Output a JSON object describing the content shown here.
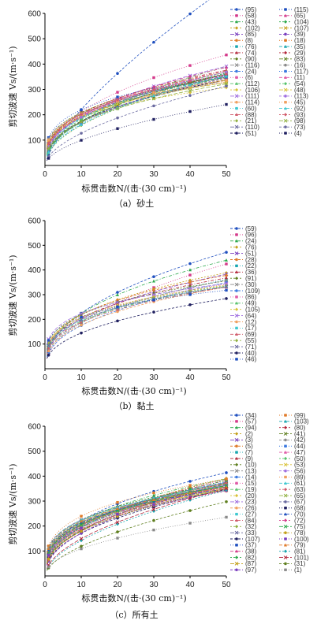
{
  "chart_data": [
    {
      "type": "scatter",
      "panel": "sand",
      "ylabel": "剪切波速 Vs/(m·s⁻¹)",
      "xlabel": "标贯击数N/(击·(30 cm)⁻¹)",
      "caption": "（a）砂土",
      "xlim": [
        0,
        50
      ],
      "ylim": [
        0,
        600
      ],
      "xticks": [
        "0",
        "10",
        "20",
        "30",
        "40",
        "50"
      ],
      "yticks": [
        "100",
        "200",
        "300",
        "400",
        "500",
        "600"
      ],
      "legend_position": "right",
      "legend": [
        "(95)",
        "(58)",
        "(43)",
        "(102)",
        "(85)",
        "(8)",
        "(76)",
        "(74)",
        "(90)",
        "(116)",
        "(24)",
        "(6)",
        "(112)",
        "(106)",
        "(111)",
        "(114)",
        "(60)",
        "(88)",
        "(21)",
        "(110)",
        "(51)",
        "(115)",
        "(65)",
        "(104)",
        "(107)",
        "(39)",
        "(18)",
        "(35)",
        "(29)",
        "(83)",
        "(16)",
        "(117)",
        "(11)",
        "(54)",
        "(48)",
        "(113)",
        "(45)",
        "(92)",
        "(93)",
        "(98)",
        "(73)",
        "(4)"
      ],
      "x": [
        1,
        10,
        20,
        30,
        40,
        50
      ],
      "curves": [
        {
          "a": 42,
          "b": 0.72
        },
        {
          "a": 75,
          "b": 0.45
        },
        {
          "a": 60,
          "b": 0.45
        },
        {
          "a": 95,
          "b": 0.33
        },
        {
          "a": 80,
          "b": 0.38
        },
        {
          "a": 90,
          "b": 0.36
        },
        {
          "a": 70,
          "b": 0.42
        },
        {
          "a": 85,
          "b": 0.38
        },
        {
          "a": 100,
          "b": 0.32
        },
        {
          "a": 65,
          "b": 0.42
        },
        {
          "a": 75,
          "b": 0.4
        },
        {
          "a": 88,
          "b": 0.36
        },
        {
          "a": 55,
          "b": 0.5
        },
        {
          "a": 95,
          "b": 0.3
        },
        {
          "a": 70,
          "b": 0.44
        },
        {
          "a": 82,
          "b": 0.36
        },
        {
          "a": 60,
          "b": 0.46
        },
        {
          "a": 78,
          "b": 0.4
        },
        {
          "a": 50,
          "b": 0.5
        },
        {
          "a": 92,
          "b": 0.34
        },
        {
          "a": 68,
          "b": 0.41
        },
        {
          "a": 110,
          "b": 0.3
        },
        {
          "a": 72,
          "b": 0.43
        },
        {
          "a": 58,
          "b": 0.47
        },
        {
          "a": 86,
          "b": 0.35
        },
        {
          "a": 64,
          "b": 0.43
        },
        {
          "a": 98,
          "b": 0.31
        },
        {
          "a": 76,
          "b": 0.39
        },
        {
          "a": 84,
          "b": 0.37
        },
        {
          "a": 62,
          "b": 0.45
        },
        {
          "a": 105,
          "b": 0.29
        },
        {
          "a": 54,
          "b": 0.48
        },
        {
          "a": 80,
          "b": 0.39
        },
        {
          "a": 66,
          "b": 0.44
        },
        {
          "a": 90,
          "b": 0.33
        },
        {
          "a": 74,
          "b": 0.41
        },
        {
          "a": 100,
          "b": 0.31
        },
        {
          "a": 52,
          "b": 0.49
        },
        {
          "a": 88,
          "b": 0.36
        },
        {
          "a": 70,
          "b": 0.39
        },
        {
          "a": 35,
          "b": 0.56
        },
        {
          "a": 28,
          "b": 0.55
        }
      ]
    },
    {
      "type": "scatter",
      "panel": "clay",
      "ylabel": "剪切波速 Vs/(m·s⁻¹)",
      "xlabel": "标贯击数N/(击·(30 cm)⁻¹)",
      "caption": "（b）黏土",
      "xlim": [
        0,
        50
      ],
      "ylim": [
        0,
        600
      ],
      "xticks": [
        "0",
        "10",
        "20",
        "30",
        "40",
        "50"
      ],
      "yticks": [
        "100",
        "200",
        "300",
        "400",
        "500",
        "600"
      ],
      "legend_position": "right",
      "legend": [
        "(59)",
        "(96)",
        "(24)",
        "(76)",
        "(51)",
        "(28)",
        "(22)",
        "(36)",
        "(91)",
        "(30)",
        "(109)",
        "(86)",
        "(49)",
        "(105)",
        "(64)",
        "(12)",
        "(17)",
        "(69)",
        "(55)",
        "(71)",
        "(40)",
        "(46)"
      ],
      "x": [
        1,
        10,
        20,
        30,
        40,
        50
      ],
      "curves": [
        {
          "a": 78,
          "b": 0.46
        },
        {
          "a": 60,
          "b": 0.5
        },
        {
          "a": 85,
          "b": 0.42
        },
        {
          "a": 95,
          "b": 0.36
        },
        {
          "a": 80,
          "b": 0.4
        },
        {
          "a": 100,
          "b": 0.34
        },
        {
          "a": 70,
          "b": 0.42
        },
        {
          "a": 90,
          "b": 0.36
        },
        {
          "a": 110,
          "b": 0.3
        },
        {
          "a": 75,
          "b": 0.4
        },
        {
          "a": 65,
          "b": 0.43
        },
        {
          "a": 98,
          "b": 0.32
        },
        {
          "a": 88,
          "b": 0.34
        },
        {
          "a": 105,
          "b": 0.3
        },
        {
          "a": 120,
          "b": 0.27
        },
        {
          "a": 72,
          "b": 0.39
        },
        {
          "a": 92,
          "b": 0.33
        },
        {
          "a": 84,
          "b": 0.35
        },
        {
          "a": 100,
          "b": 0.31
        },
        {
          "a": 95,
          "b": 0.32
        },
        {
          "a": 55,
          "b": 0.42
        },
        {
          "a": 115,
          "b": 0.26
        }
      ]
    },
    {
      "type": "scatter",
      "panel": "all",
      "ylabel": "剪切波速 Vs/(m·s⁻¹)",
      "xlabel": "标贯击数N/(击·(30 cm)⁻¹)",
      "caption": "（c）所有土",
      "xlim": [
        0,
        50
      ],
      "ylim": [
        0,
        600
      ],
      "xticks": [
        "0",
        "10",
        "20",
        "30",
        "40",
        "50"
      ],
      "yticks": [
        "100",
        "200",
        "300",
        "400",
        "500",
        "600"
      ],
      "legend_position": "right",
      "legend": [
        "(34)",
        "(57)",
        "(94)",
        "(2)",
        "(3)",
        "(5)",
        "(7)",
        "(9)",
        "(10)",
        "(13)",
        "(14)",
        "(15)",
        "(19)",
        "(20)",
        "(23)",
        "(26)",
        "(27)",
        "(84)",
        "(32)",
        "(33)",
        "(107)",
        "(37)",
        "(38)",
        "(82)",
        "(87)",
        "(97)",
        "(99)",
        "(103)",
        "(80)",
        "(41)",
        "(42)",
        "(44)",
        "(47)",
        "(50)",
        "(53)",
        "(56)",
        "(89)",
        "(61)",
        "(63)",
        "(65)",
        "(67)",
        "(68)",
        "(70)",
        "(72)",
        "(75)",
        "(78)",
        "(100)",
        "(79)",
        "(81)",
        "(101)",
        "(31)",
        "(1)"
      ],
      "x": [
        1,
        10,
        20,
        30,
        40,
        50
      ],
      "curves": [
        {
          "a": 90,
          "b": 0.39
        },
        {
          "a": 75,
          "b": 0.42
        },
        {
          "a": 95,
          "b": 0.36
        },
        {
          "a": 70,
          "b": 0.44
        },
        {
          "a": 85,
          "b": 0.38
        },
        {
          "a": 100,
          "b": 0.33
        },
        {
          "a": 65,
          "b": 0.45
        },
        {
          "a": 80,
          "b": 0.4
        },
        {
          "a": 110,
          "b": 0.31
        },
        {
          "a": 72,
          "b": 0.41
        },
        {
          "a": 88,
          "b": 0.37
        },
        {
          "a": 60,
          "b": 0.46
        },
        {
          "a": 98,
          "b": 0.34
        },
        {
          "a": 76,
          "b": 0.4
        },
        {
          "a": 92,
          "b": 0.35
        },
        {
          "a": 68,
          "b": 0.43
        },
        {
          "a": 105,
          "b": 0.32
        },
        {
          "a": 84,
          "b": 0.38
        },
        {
          "a": 78,
          "b": 0.4
        },
        {
          "a": 115,
          "b": 0.29
        },
        {
          "a": 62,
          "b": 0.44
        },
        {
          "a": 96,
          "b": 0.33
        },
        {
          "a": 86,
          "b": 0.36
        },
        {
          "a": 74,
          "b": 0.42
        },
        {
          "a": 102,
          "b": 0.31
        },
        {
          "a": 58,
          "b": 0.47
        },
        {
          "a": 120,
          "b": 0.3
        },
        {
          "a": 82,
          "b": 0.38
        },
        {
          "a": 94,
          "b": 0.34
        },
        {
          "a": 66,
          "b": 0.44
        },
        {
          "a": 108,
          "b": 0.3
        },
        {
          "a": 79,
          "b": 0.39
        },
        {
          "a": 90,
          "b": 0.35
        },
        {
          "a": 70,
          "b": 0.41
        },
        {
          "a": 100,
          "b": 0.32
        },
        {
          "a": 86,
          "b": 0.37
        },
        {
          "a": 76,
          "b": 0.39
        },
        {
          "a": 112,
          "b": 0.3
        },
        {
          "a": 64,
          "b": 0.45
        },
        {
          "a": 88,
          "b": 0.36
        },
        {
          "a": 96,
          "b": 0.34
        },
        {
          "a": 72,
          "b": 0.4
        },
        {
          "a": 104,
          "b": 0.31
        },
        {
          "a": 80,
          "b": 0.37
        },
        {
          "a": 92,
          "b": 0.35
        },
        {
          "a": 68,
          "b": 0.42
        },
        {
          "a": 84,
          "b": 0.36
        },
        {
          "a": 110,
          "b": 0.3
        },
        {
          "a": 40,
          "b": 0.55
        },
        {
          "a": 44,
          "b": 0.53
        },
        {
          "a": 32,
          "b": 0.57
        },
        {
          "a": 36,
          "b": 0.48
        }
      ]
    }
  ],
  "palette": [
    "#1f4fbf",
    "#d43a8b",
    "#2aa84a",
    "#c4a01a",
    "#7a3fbf",
    "#e07b2a",
    "#1aa7b0",
    "#b3263a",
    "#5f7f1f",
    "#8a8a8a",
    "#3d7ae0",
    "#e05aa7",
    "#56c26b",
    "#d9c23a",
    "#a070e0",
    "#f0a060",
    "#40c8d0",
    "#d05a6a",
    "#90b040",
    "#6a6aa0",
    "#202060"
  ]
}
